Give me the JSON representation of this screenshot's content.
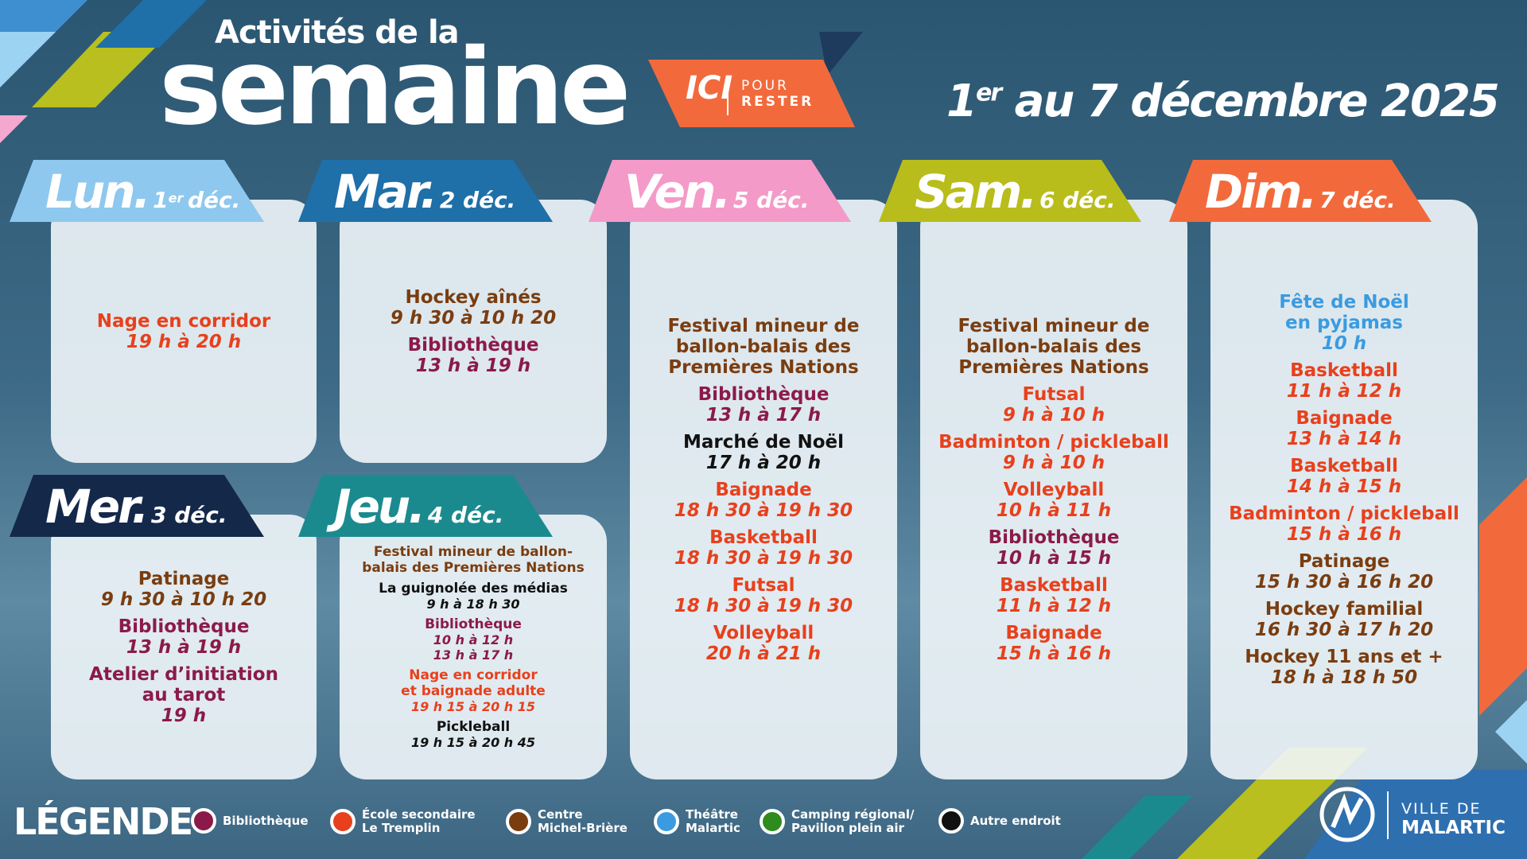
{
  "header": {
    "title_small": "Activités de la",
    "title_big": "semaine",
    "badge": [
      "ICI",
      "POUR",
      "RESTER"
    ],
    "date_range": [
      "1",
      "er",
      "au 7 décembre 2025"
    ]
  },
  "legend": {
    "title": "LÉGENDE",
    "items": [
      {
        "lines": [
          "Bibliothèque"
        ],
        "color": "#8b1a4a"
      },
      {
        "lines": [
          "École secondaire",
          "Le Tremplin"
        ],
        "color": "#e8401c"
      },
      {
        "lines": [
          "Centre",
          "Michel-Brière"
        ],
        "color": "#7a3d10"
      },
      {
        "lines": [
          "Théâtre",
          "Malartic"
        ],
        "color": "#3a9be0"
      },
      {
        "lines": [
          "Camping régional/",
          "Pavillon plein air"
        ],
        "color": "#2e8b1e"
      },
      {
        "lines": [
          "Autre endroit"
        ],
        "color": "#111111"
      }
    ]
  },
  "days": [
    {
      "abbr": "Lun.",
      "date": [
        "1",
        "er",
        "déc."
      ],
      "color": "#8ec8ee",
      "activities": [
        {
          "name": [
            "Nage en corridor"
          ],
          "time": "19 h à 20 h",
          "venue": 1
        }
      ]
    },
    {
      "abbr": "Mar.",
      "date": [
        "2 déc."
      ],
      "color": "#1f6fa8",
      "activities": [
        {
          "name": [
            "Hockey aînés"
          ],
          "time": "9 h 30 à 10 h 20",
          "venue": 2
        },
        {
          "name": [
            "Bibliothèque"
          ],
          "time": "13 h à 19 h",
          "venue": 0
        }
      ]
    },
    {
      "abbr": "Mer.",
      "date": [
        "3 déc."
      ],
      "color": "#14284a",
      "activities": [
        {
          "name": [
            "Patinage"
          ],
          "time": "9 h 30 à 10 h 20",
          "venue": 2
        },
        {
          "name": [
            "Bibliothèque"
          ],
          "time": "13 h à 19 h",
          "venue": 0
        },
        {
          "name": [
            "Atelier d’initiation",
            "au tarot"
          ],
          "time": "19 h",
          "venue": 0
        }
      ]
    },
    {
      "abbr": "Jeu.",
      "date": [
        "4 déc."
      ],
      "color": "#1b8a8f",
      "small": true,
      "activities": [
        {
          "name": [
            "Festival mineur de ballon-",
            "balais des Premières Nations"
          ],
          "venue": 2
        },
        {
          "name": [
            "La guignolée des médias"
          ],
          "time": "9 h à 18 h 30",
          "venue": 5
        },
        {
          "name": [
            "Bibliothèque"
          ],
          "time": "10 h à 12 h",
          "time2": "13 h à 17 h",
          "venue": 0
        },
        {
          "name": [
            "Nage en corridor",
            "et baignade adulte"
          ],
          "time": "19 h 15 à 20 h 15",
          "venue": 1
        },
        {
          "name": [
            "Pickleball"
          ],
          "time": "19 h 15 à 20 h 45",
          "venue": 5
        }
      ]
    },
    {
      "abbr": "Ven.",
      "date": [
        "5 déc."
      ],
      "color": "#f49ac8",
      "activities": [
        {
          "name": [
            "Festival mineur de",
            "ballon-balais des",
            "Premières Nations"
          ],
          "venue": 2
        },
        {
          "name": [
            "Bibliothèque"
          ],
          "time": "13 h à 17 h",
          "venue": 0
        },
        {
          "name": [
            "Marché de Noël"
          ],
          "time": "17 h à 20 h",
          "venue": 5
        },
        {
          "name": [
            "Baignade"
          ],
          "time": "18 h 30 à 19 h 30",
          "venue": 1
        },
        {
          "name": [
            "Basketball"
          ],
          "time": "18 h 30 à 19 h 30",
          "venue": 1
        },
        {
          "name": [
            "Futsal"
          ],
          "time": "18 h 30 à 19 h 30",
          "venue": 1
        },
        {
          "name": [
            "Volleyball"
          ],
          "time": "20 h à 21 h",
          "venue": 1
        }
      ]
    },
    {
      "abbr": "Sam.",
      "date": [
        "6 déc."
      ],
      "color": "#b8bd1c",
      "activities": [
        {
          "name": [
            "Festival mineur de",
            "ballon-balais des",
            "Premières Nations"
          ],
          "venue": 2
        },
        {
          "name": [
            "Futsal"
          ],
          "time": "9 h à 10 h",
          "venue": 1
        },
        {
          "name": [
            "Badminton / pickleball"
          ],
          "time": "9 h à 10 h",
          "venue": 1
        },
        {
          "name": [
            "Volleyball"
          ],
          "time": "10 h à 11 h",
          "venue": 1
        },
        {
          "name": [
            "Bibliothèque"
          ],
          "time": "10 h à 15 h",
          "venue": 0
        },
        {
          "name": [
            "Basketball"
          ],
          "time": "11 h à 12 h",
          "venue": 1
        },
        {
          "name": [
            "Baignade"
          ],
          "time": "15 h à 16 h",
          "venue": 1
        }
      ]
    },
    {
      "abbr": "Dim.",
      "date": [
        "7 déc."
      ],
      "color": "#f26a3c",
      "activities": [
        {
          "name": [
            "Fête de Noël",
            "en pyjamas"
          ],
          "time": "10 h",
          "venue": 3
        },
        {
          "name": [
            "Basketball"
          ],
          "time": "11 h à 12 h",
          "venue": 1
        },
        {
          "name": [
            "Baignade"
          ],
          "time": "13 h à 14 h",
          "venue": 1
        },
        {
          "name": [
            "Basketball"
          ],
          "time": "14 h à 15 h",
          "venue": 1
        },
        {
          "name": [
            "Badminton / pickleball"
          ],
          "time": "15 h à 16 h",
          "venue": 1
        },
        {
          "name": [
            "Patinage"
          ],
          "time": "15 h 30 à 16 h 20",
          "venue": 2
        },
        {
          "name": [
            "Hockey familial"
          ],
          "time": "16 h 30 à 17 h 20",
          "venue": 2
        },
        {
          "name": [
            "Hockey 11 ans et +"
          ],
          "time": "18 h à 18 h 50",
          "venue": 2
        }
      ]
    }
  ],
  "logo": [
    "VILLE DE",
    "MALARTIC"
  ]
}
